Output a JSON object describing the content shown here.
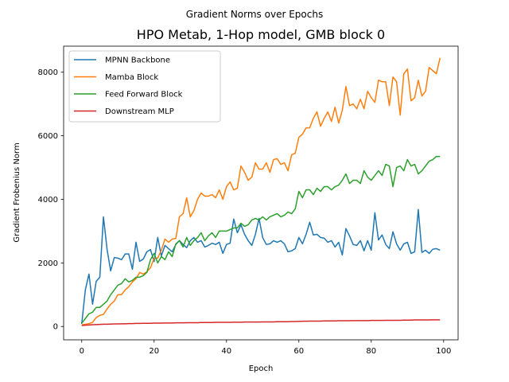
{
  "chart_data": {
    "type": "line",
    "suptitle": "Gradient Norms over Epochs",
    "title": "HPO Metab, 1-Hop model, GMB block 0",
    "xlabel": "Epoch",
    "ylabel": "Gradient Frobenius Norm",
    "xlim": [
      -5,
      104
    ],
    "ylim": [
      -420,
      8820
    ],
    "xticks": [
      0,
      20,
      40,
      60,
      80,
      100
    ],
    "yticks": [
      0,
      2000,
      4000,
      6000,
      8000
    ],
    "grid": false,
    "legend_position": "top-left",
    "x": [
      0,
      1,
      2,
      3,
      4,
      5,
      6,
      7,
      8,
      9,
      10,
      11,
      12,
      13,
      14,
      15,
      16,
      17,
      18,
      19,
      20,
      21,
      22,
      23,
      24,
      25,
      26,
      27,
      28,
      29,
      30,
      31,
      32,
      33,
      34,
      35,
      36,
      37,
      38,
      39,
      40,
      41,
      42,
      43,
      44,
      45,
      46,
      47,
      48,
      49,
      50,
      51,
      52,
      53,
      54,
      55,
      56,
      57,
      58,
      59,
      60,
      61,
      62,
      63,
      64,
      65,
      66,
      67,
      68,
      69,
      70,
      71,
      72,
      73,
      74,
      75,
      76,
      77,
      78,
      79,
      80,
      81,
      82,
      83,
      84,
      85,
      86,
      87,
      88,
      89,
      90,
      91,
      92,
      93,
      94,
      95,
      96,
      97,
      98,
      99
    ],
    "series": [
      {
        "name": "MPNN Backbone",
        "color": "#1f77b4",
        "values": [
          80,
          1150,
          1650,
          700,
          1420,
          1550,
          3450,
          2430,
          1750,
          2170,
          2150,
          2100,
          2280,
          2280,
          1800,
          2650,
          2050,
          2120,
          2350,
          2420,
          2040,
          2800,
          2220,
          2550,
          2450,
          2350,
          2580,
          2700,
          2580,
          2480,
          2700,
          2800,
          2650,
          2700,
          2500,
          2550,
          2620,
          2580,
          2650,
          2300,
          2580,
          2620,
          3380,
          2950,
          3200,
          2900,
          2700,
          2550,
          2900,
          3400,
          2800,
          2580,
          2600,
          2700,
          2650,
          2700,
          2600,
          2350,
          2380,
          2450,
          2800,
          2600,
          2900,
          3280,
          2880,
          2900,
          2800,
          2780,
          2650,
          2700,
          2500,
          2650,
          2250,
          3080,
          2850,
          2580,
          2550,
          2700,
          2380,
          2700,
          2400,
          3580,
          2720,
          2880,
          2580,
          2450,
          2980,
          2600,
          2400,
          2600,
          2650,
          2300,
          2350,
          3680,
          2330,
          2400,
          2300,
          2430,
          2450,
          2400
        ]
      },
      {
        "name": "Mamba Block",
        "color": "#ff7f0e",
        "values": [
          50,
          70,
          90,
          130,
          280,
          350,
          380,
          550,
          700,
          800,
          1000,
          1000,
          1150,
          1250,
          1400,
          1500,
          1700,
          1650,
          1720,
          1850,
          2150,
          2150,
          2400,
          2750,
          2650,
          2750,
          2770,
          3450,
          3550,
          4050,
          3450,
          3650,
          4000,
          4200,
          4100,
          4100,
          4150,
          4050,
          4300,
          4000,
          4400,
          4550,
          4300,
          4350,
          5050,
          4850,
          4600,
          4700,
          5150,
          4950,
          4950,
          5150,
          4850,
          5250,
          5280,
          5100,
          5150,
          4900,
          5400,
          5450,
          5950,
          6050,
          6250,
          6250,
          6550,
          6750,
          6300,
          6550,
          6750,
          6450,
          6900,
          6400,
          6800,
          7550,
          6950,
          7000,
          6850,
          7150,
          6850,
          7400,
          7200,
          7050,
          7750,
          7700,
          7700,
          6950,
          7850,
          7700,
          6650,
          7950,
          8100,
          7100,
          7200,
          7750,
          7250,
          7400,
          8150,
          8050,
          7950,
          8450
        ]
      },
      {
        "name": "Feed Forward Block",
        "color": "#2ca02c",
        "values": [
          100,
          250,
          400,
          450,
          600,
          600,
          700,
          800,
          1000,
          1150,
          1300,
          1350,
          1500,
          1400,
          1450,
          1550,
          1550,
          1600,
          1700,
          2100,
          2300,
          2000,
          2200,
          2100,
          2350,
          2200,
          2600,
          2700,
          2500,
          2800,
          2550,
          2700,
          2800,
          2950,
          2700,
          2850,
          2950,
          2800,
          3000,
          3000,
          3000,
          3050,
          3100,
          3100,
          3250,
          3150,
          3200,
          3350,
          3400,
          3350,
          3450,
          3350,
          3450,
          3500,
          3550,
          3450,
          3500,
          3600,
          3550,
          3700,
          4250,
          4050,
          4300,
          4300,
          4150,
          4350,
          4250,
          4400,
          4400,
          4300,
          4400,
          4450,
          4600,
          4800,
          4500,
          4600,
          4600,
          4500,
          4900,
          4700,
          4600,
          4750,
          4900,
          4750,
          5100,
          5050,
          4400,
          5000,
          5050,
          4900,
          5250,
          5050,
          5100,
          4800,
          4900,
          5050,
          5200,
          5250,
          5350,
          5350
        ]
      },
      {
        "name": "Downstream MLP",
        "color": "#d62728",
        "values": [
          30,
          40,
          45,
          55,
          60,
          65,
          70,
          70,
          75,
          80,
          80,
          85,
          85,
          90,
          90,
          95,
          95,
          100,
          100,
          100,
          105,
          105,
          105,
          110,
          110,
          110,
          115,
          115,
          115,
          120,
          120,
          120,
          120,
          125,
          125,
          125,
          125,
          130,
          130,
          130,
          130,
          130,
          135,
          135,
          135,
          140,
          140,
          140,
          140,
          140,
          145,
          145,
          145,
          145,
          150,
          150,
          150,
          150,
          155,
          155,
          160,
          165,
          165,
          170,
          170,
          170,
          170,
          175,
          175,
          175,
          175,
          180,
          180,
          180,
          180,
          185,
          185,
          185,
          185,
          185,
          190,
          190,
          190,
          190,
          195,
          195,
          195,
          195,
          195,
          200,
          200,
          200,
          205,
          205,
          205,
          205,
          205,
          210,
          210,
          210
        ]
      }
    ]
  }
}
